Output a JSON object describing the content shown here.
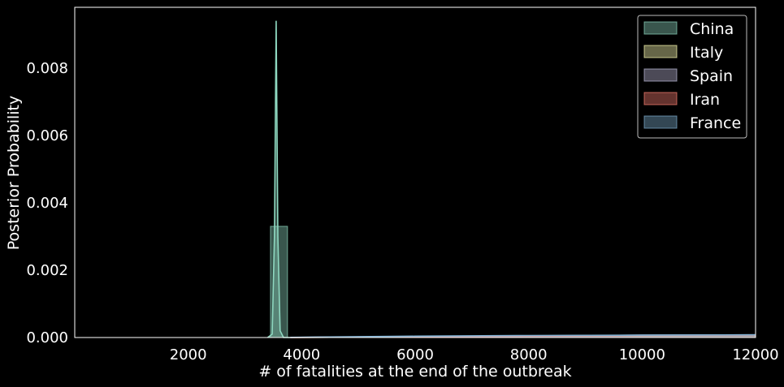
{
  "chart_data": {
    "type": "area",
    "title": "",
    "xlabel": "# of fatalities at the end of the outbreak",
    "ylabel": "Posterior Probability",
    "xlim": [
      0,
      12000
    ],
    "ylim": [
      0,
      0.0098
    ],
    "x_ticks": [
      2000,
      4000,
      6000,
      8000,
      10000,
      12000
    ],
    "x_tick_labels": [
      "2000",
      "4000",
      "6000",
      "8000",
      "10000",
      "12000"
    ],
    "y_ticks": [
      0.0,
      0.002,
      0.004,
      0.006,
      0.008
    ],
    "y_tick_labels": [
      "0.000",
      "0.002",
      "0.004",
      "0.006",
      "0.008"
    ],
    "grid": false,
    "legend_position": "top-right",
    "background": "#000000",
    "series": [
      {
        "name": "China",
        "color": "#8ed8c0",
        "histogram": {
          "bins": [
            [
              3450,
              3750,
              0.0033
            ]
          ]
        },
        "density": {
          "x": [
            3400,
            3480,
            3520,
            3550,
            3580,
            3620,
            3680,
            3800
          ],
          "y": [
            0,
            0.0001,
            0.003,
            0.0094,
            0.003,
            0.0002,
            0,
            0
          ]
        }
      },
      {
        "name": "Italy",
        "color": "#ffffb3",
        "histogram": {
          "bins": []
        },
        "density": {
          "x": [
            3800,
            6000,
            8000,
            10000,
            12000
          ],
          "y": [
            2e-06,
            2e-05,
            4e-05,
            5e-05,
            6e-05
          ]
        }
      },
      {
        "name": "Spain",
        "color": "#bebada",
        "histogram": {
          "bins": []
        },
        "density": {
          "x": [
            3800,
            6000,
            8000,
            10000,
            12000
          ],
          "y": [
            3e-06,
            3e-05,
            5e-05,
            7e-05,
            8e-05
          ]
        }
      },
      {
        "name": "Iran",
        "color": "#fb8072",
        "histogram": {
          "bins": []
        },
        "density": {
          "x": [
            3800,
            6000,
            8000,
            10000,
            12000
          ],
          "y": [
            2e-06,
            2e-05,
            4e-05,
            6e-05,
            7e-05
          ]
        }
      },
      {
        "name": "France",
        "color": "#80b1d3",
        "histogram": {
          "bins": []
        },
        "density": {
          "x": [
            3800,
            6000,
            8000,
            10000,
            12000
          ],
          "y": [
            4e-06,
            4e-05,
            6e-05,
            7e-05,
            8e-05
          ]
        }
      }
    ]
  }
}
